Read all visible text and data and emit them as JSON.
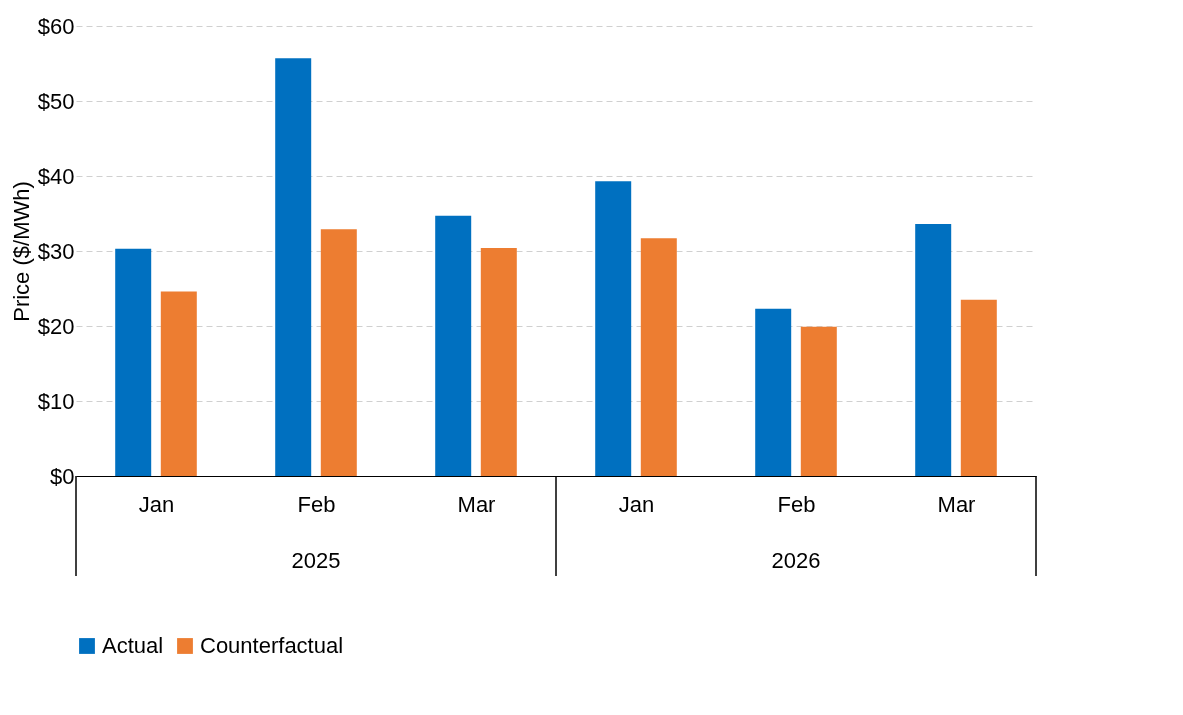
{
  "chart_data": {
    "type": "bar",
    "ylabel": "Price ($/MWh)",
    "categories": [
      "Jan",
      "Feb",
      "Mar",
      "Jan",
      "Feb",
      "Mar"
    ],
    "annotations": [
      "2025",
      "2026"
    ],
    "series": [
      {
        "name": "Actual",
        "color": "#0070c0",
        "values": [
          30.3,
          55.7,
          34.7,
          39.3,
          22.3,
          33.6
        ]
      },
      {
        "name": "Counterfactual",
        "color": "#ed7d31",
        "values": [
          24.6,
          32.9,
          30.4,
          31.7,
          19.9,
          23.5
        ]
      }
    ],
    "ylim": [
      0,
      60
    ],
    "yticks": [
      {
        "value": 0,
        "label": "$0"
      },
      {
        "value": 10,
        "label": "$10"
      },
      {
        "value": 20,
        "label": "$20"
      },
      {
        "value": 30,
        "label": "$30"
      },
      {
        "value": 40,
        "label": "$40"
      },
      {
        "value": 50,
        "label": "$50"
      },
      {
        "value": 60,
        "label": "$60"
      }
    ],
    "grid": "y",
    "legend": "bottom"
  }
}
